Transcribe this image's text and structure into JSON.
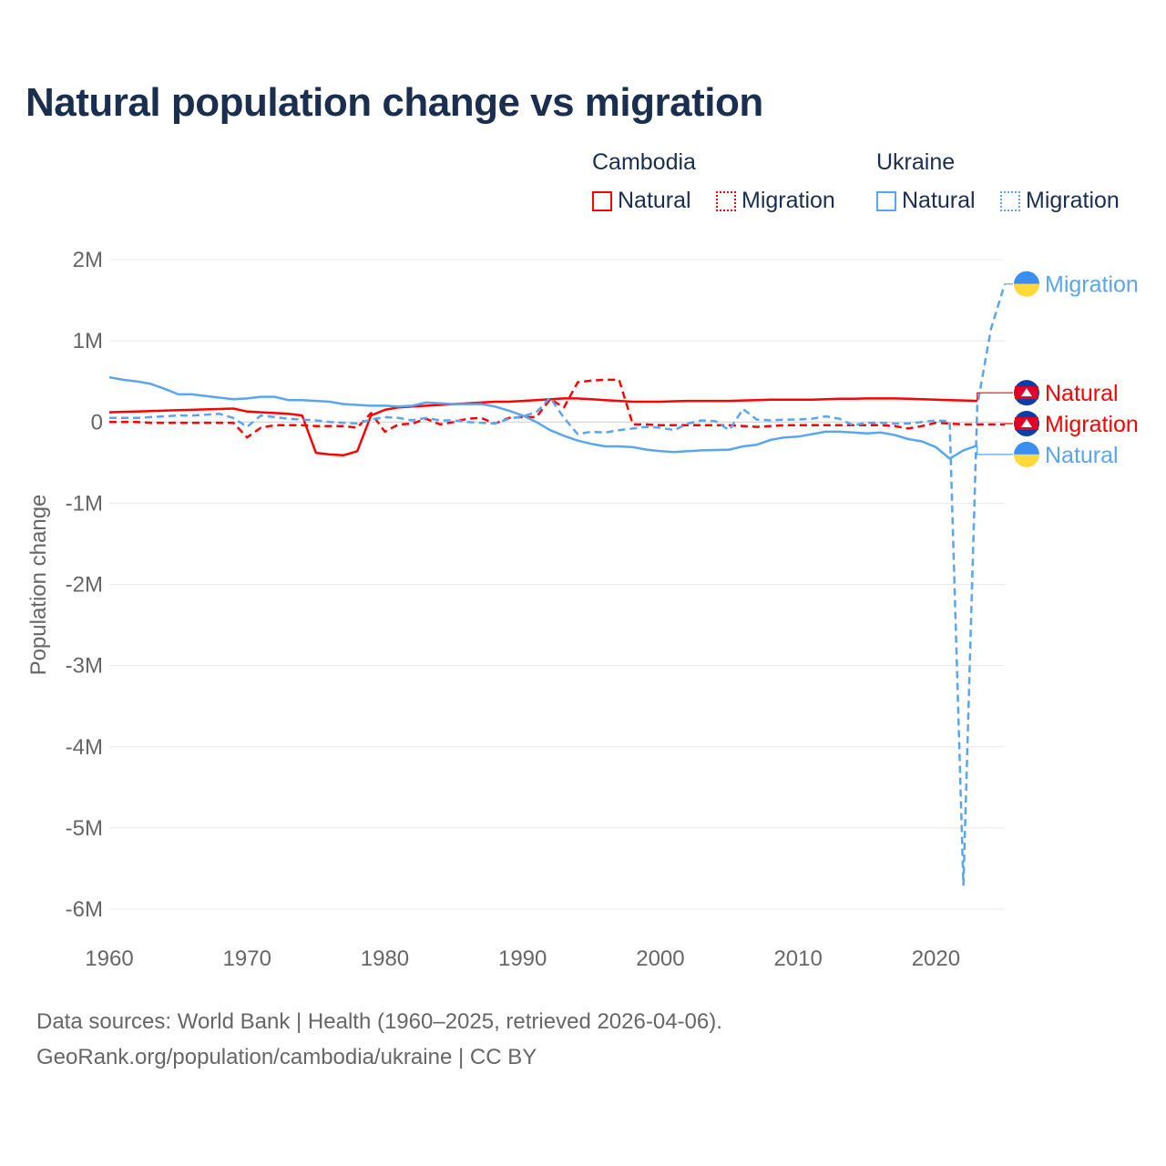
{
  "title": "Natural population change vs migration",
  "legend": {
    "groups": [
      {
        "name": "Cambodia",
        "items": [
          "Natural",
          "Migration"
        ]
      },
      {
        "name": "Ukraine",
        "items": [
          "Natural",
          "Migration"
        ]
      }
    ]
  },
  "colors": {
    "cambodia": "#ff0000",
    "ukraine": "#5aa5f0"
  },
  "footer": {
    "line1": "Data sources: World Bank | Health (1960–2025, retrieved 2026-04-06).",
    "line2": "GeoRank.org/population/cambodia/ukraine | CC BY"
  },
  "chart_data": {
    "type": "line",
    "ylabel": "Population change",
    "ylim": [
      -6000000,
      2000000
    ],
    "xlim": [
      1960,
      2025
    ],
    "yticks": [
      {
        "v": 2000000,
        "l": "2M"
      },
      {
        "v": 1000000,
        "l": "1M"
      },
      {
        "v": 0,
        "l": "0"
      },
      {
        "v": -1000000,
        "l": "-1M"
      },
      {
        "v": -2000000,
        "l": "-2M"
      },
      {
        "v": -3000000,
        "l": "-3M"
      },
      {
        "v": -4000000,
        "l": "-4M"
      },
      {
        "v": -5000000,
        "l": "-5M"
      },
      {
        "v": -6000000,
        "l": "-6M"
      }
    ],
    "xticks": [
      1960,
      1970,
      1980,
      1990,
      2000,
      2010,
      2020
    ],
    "series": [
      {
        "name": "Cambodia Natural",
        "label": "Natural",
        "country": "cambodia",
        "dash": false,
        "start": 1960,
        "values": [
          0.12,
          0.125,
          0.13,
          0.135,
          0.14,
          0.145,
          0.15,
          0.155,
          0.16,
          0.165,
          0.13,
          0.12,
          0.11,
          0.1,
          0.08,
          -0.38,
          -0.4,
          -0.41,
          -0.36,
          0.08,
          0.15,
          0.18,
          0.19,
          0.2,
          0.21,
          0.22,
          0.23,
          0.24,
          0.25,
          0.25,
          0.26,
          0.27,
          0.28,
          0.29,
          0.29,
          0.28,
          0.27,
          0.26,
          0.25,
          0.25,
          0.25,
          0.255,
          0.26,
          0.26,
          0.26,
          0.26,
          0.265,
          0.27,
          0.275,
          0.275,
          0.275,
          0.275,
          0.28,
          0.285,
          0.285,
          0.29,
          0.29,
          0.29,
          0.285,
          0.28,
          0.275,
          0.27,
          0.265,
          0.26
        ]
      },
      {
        "name": "Cambodia Migration",
        "label": "Migration",
        "country": "cambodia",
        "dash": true,
        "start": 1960,
        "values": [
          0,
          0,
          0,
          -0.01,
          -0.01,
          -0.01,
          -0.01,
          -0.01,
          -0.01,
          -0.01,
          -0.19,
          -0.07,
          -0.04,
          -0.04,
          -0.04,
          -0.05,
          -0.05,
          -0.05,
          -0.07,
          0.11,
          -0.12,
          -0.03,
          -0.02,
          0.04,
          -0.03,
          0,
          0.04,
          0.05,
          -0.02,
          0.05,
          0.06,
          0.06,
          0.28,
          0.18,
          0.49,
          0.51,
          0.52,
          0.52,
          -0.03,
          -0.03,
          -0.04,
          -0.04,
          -0.04,
          -0.04,
          -0.04,
          -0.04,
          -0.05,
          -0.06,
          -0.05,
          -0.04,
          -0.04,
          -0.04,
          -0.04,
          -0.04,
          -0.04,
          -0.04,
          -0.04,
          -0.05,
          -0.08,
          -0.05,
          -0.01,
          -0.02,
          -0.03,
          -0.03,
          -0.03,
          -0.03
        ]
      },
      {
        "name": "Ukraine Natural",
        "label": "Natural",
        "country": "ukraine",
        "dash": false,
        "start": 1960,
        "values": [
          0.55,
          0.52,
          0.5,
          0.47,
          0.41,
          0.34,
          0.34,
          0.32,
          0.3,
          0.28,
          0.29,
          0.31,
          0.31,
          0.27,
          0.27,
          0.26,
          0.25,
          0.22,
          0.21,
          0.2,
          0.2,
          0.19,
          0.2,
          0.24,
          0.23,
          0.22,
          0.22,
          0.22,
          0.19,
          0.14,
          0.08,
          0.0,
          -0.1,
          -0.17,
          -0.23,
          -0.27,
          -0.3,
          -0.3,
          -0.31,
          -0.34,
          -0.36,
          -0.37,
          -0.36,
          -0.35,
          -0.345,
          -0.34,
          -0.3,
          -0.28,
          -0.22,
          -0.19,
          -0.18,
          -0.15,
          -0.12,
          -0.12,
          -0.13,
          -0.14,
          -0.13,
          -0.16,
          -0.21,
          -0.24,
          -0.31,
          -0.45,
          -0.35,
          -0.29
        ]
      },
      {
        "name": "Ukraine Migration",
        "label": "Migration",
        "country": "ukraine",
        "dash": true,
        "start": 1960,
        "values": [
          0.05,
          0.05,
          0.05,
          0.06,
          0.07,
          0.08,
          0.08,
          0.09,
          0.1,
          0.05,
          -0.06,
          0.08,
          0.06,
          0.04,
          0.03,
          0.02,
          0.0,
          -0.01,
          -0.02,
          0.03,
          0.06,
          0.05,
          0.02,
          0.05,
          0.02,
          0.02,
          0.0,
          -0.01,
          -0.02,
          0.04,
          0.07,
          0.12,
          0.3,
          0.05,
          -0.15,
          -0.12,
          -0.13,
          -0.1,
          -0.08,
          -0.06,
          -0.07,
          -0.1,
          -0.02,
          0.02,
          0.01,
          -0.1,
          0.16,
          0.03,
          0.02,
          0.03,
          0.03,
          0.04,
          0.07,
          0.04,
          -0.04,
          -0.01,
          -0.01,
          -0.02,
          -0.02,
          0.0,
          0.02,
          0.01,
          -5.7,
          0.2,
          1.15,
          1.7
        ]
      }
    ],
    "end_labels": [
      {
        "series": 0,
        "text": "Natural",
        "at": 0.36
      },
      {
        "series": 1,
        "text": "Migration",
        "at": -0.02
      },
      {
        "series": 2,
        "text": "Natural",
        "at": -0.4
      },
      {
        "series": 3,
        "text": "Migration",
        "at": 1.7
      }
    ],
    "value_unit": "millions"
  }
}
